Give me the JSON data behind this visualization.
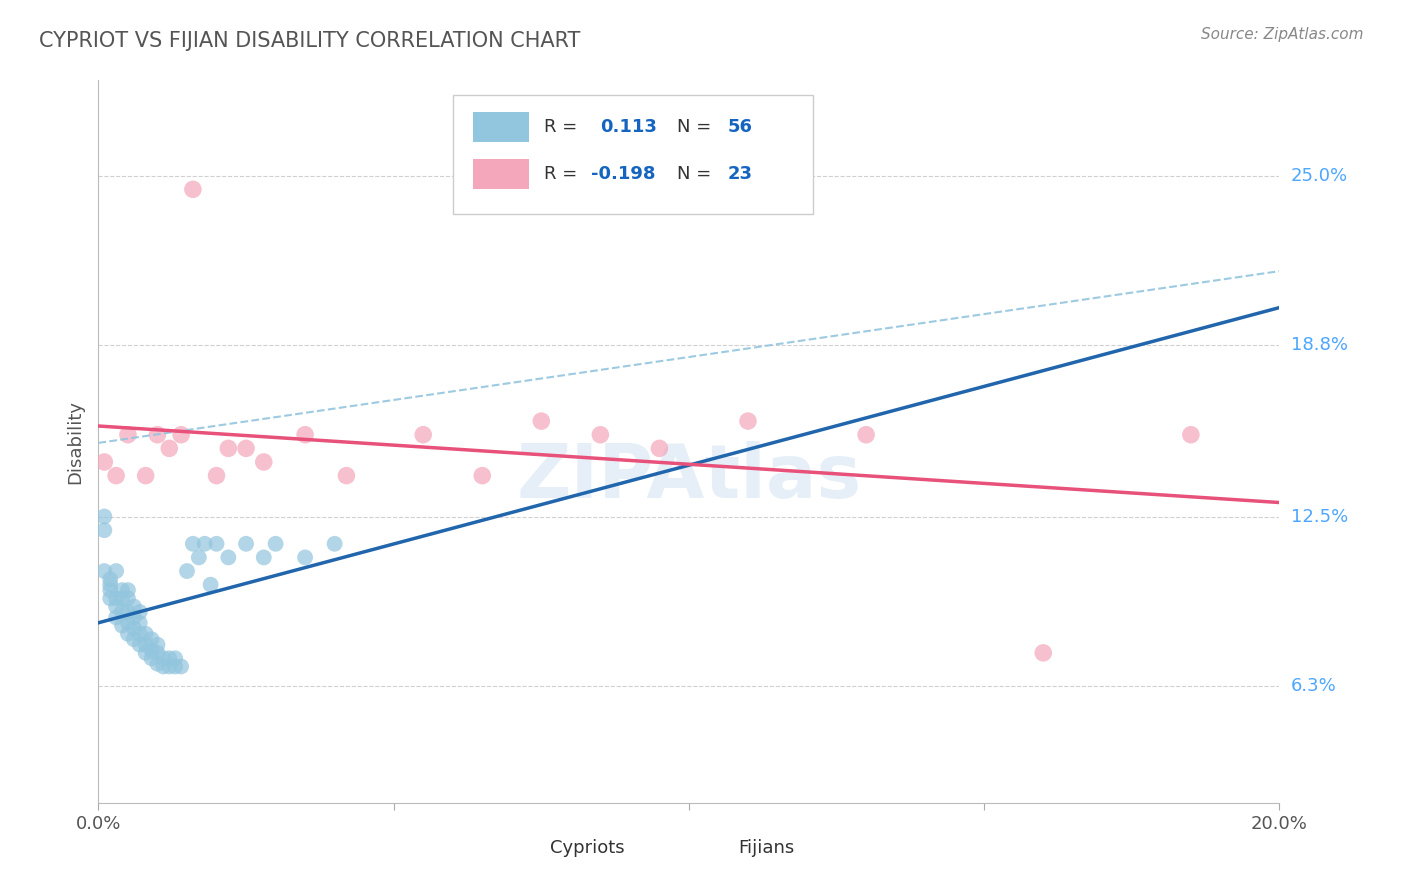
{
  "title": "CYPRIOT VS FIJIAN DISABILITY CORRELATION CHART",
  "source": "Source: ZipAtlas.com",
  "ylabel": "Disability",
  "cypriot_color": "#92c5de",
  "fijian_color": "#f4a6ba",
  "cypriot_line_color": "#2166ac",
  "fijian_line_color": "#e8517a",
  "dashed_line_color": "#92c5de",
  "cypriot_R": "0.113",
  "cypriot_N": "56",
  "fijian_R": "-0.198",
  "fijian_N": "23",
  "R_label_color": "#333333",
  "RN_value_color": "#1565C0",
  "title_color": "#555555",
  "source_color": "#888888",
  "ytick_color": "#4da6ff",
  "grid_color": "#d0d0d0",
  "xlim": [
    0.0,
    0.2
  ],
  "ylim": [
    0.02,
    0.285
  ],
  "ytick_positions": [
    0.063,
    0.125,
    0.188,
    0.25
  ],
  "ytick_labels": [
    "6.3%",
    "12.5%",
    "18.8%",
    "25.0%"
  ],
  "xtick_positions": [
    0.0,
    0.05,
    0.1,
    0.15,
    0.2
  ],
  "xtick_labels": [
    "0.0%",
    "",
    "",
    "",
    "20.0%"
  ],
  "cypriot_x": [
    0.001,
    0.001,
    0.001,
    0.002,
    0.002,
    0.002,
    0.002,
    0.003,
    0.003,
    0.003,
    0.003,
    0.004,
    0.004,
    0.004,
    0.004,
    0.005,
    0.005,
    0.005,
    0.005,
    0.005,
    0.006,
    0.006,
    0.006,
    0.006,
    0.007,
    0.007,
    0.007,
    0.007,
    0.008,
    0.008,
    0.008,
    0.009,
    0.009,
    0.009,
    0.01,
    0.01,
    0.01,
    0.011,
    0.011,
    0.012,
    0.012,
    0.013,
    0.013,
    0.014,
    0.015,
    0.016,
    0.017,
    0.018,
    0.019,
    0.02,
    0.022,
    0.025,
    0.028,
    0.03,
    0.035,
    0.04
  ],
  "cypriot_y": [
    0.12,
    0.125,
    0.105,
    0.1,
    0.095,
    0.098,
    0.102,
    0.092,
    0.088,
    0.095,
    0.105,
    0.085,
    0.09,
    0.095,
    0.098,
    0.082,
    0.086,
    0.09,
    0.095,
    0.098,
    0.08,
    0.084,
    0.088,
    0.092,
    0.078,
    0.082,
    0.086,
    0.09,
    0.075,
    0.078,
    0.082,
    0.073,
    0.076,
    0.08,
    0.071,
    0.075,
    0.078,
    0.07,
    0.073,
    0.07,
    0.073,
    0.07,
    0.073,
    0.07,
    0.105,
    0.115,
    0.11,
    0.115,
    0.1,
    0.115,
    0.11,
    0.115,
    0.11,
    0.115,
    0.11,
    0.115
  ],
  "fijian_x": [
    0.001,
    0.003,
    0.005,
    0.008,
    0.01,
    0.012,
    0.014,
    0.016,
    0.02,
    0.022,
    0.025,
    0.028,
    0.035,
    0.042,
    0.055,
    0.065,
    0.075,
    0.085,
    0.095,
    0.11,
    0.13,
    0.16,
    0.185
  ],
  "fijian_y": [
    0.145,
    0.14,
    0.155,
    0.14,
    0.155,
    0.15,
    0.155,
    0.245,
    0.14,
    0.15,
    0.15,
    0.145,
    0.155,
    0.14,
    0.155,
    0.14,
    0.16,
    0.155,
    0.15,
    0.16,
    0.155,
    0.075,
    0.155
  ],
  "watermark_color": "#c8dcf0"
}
